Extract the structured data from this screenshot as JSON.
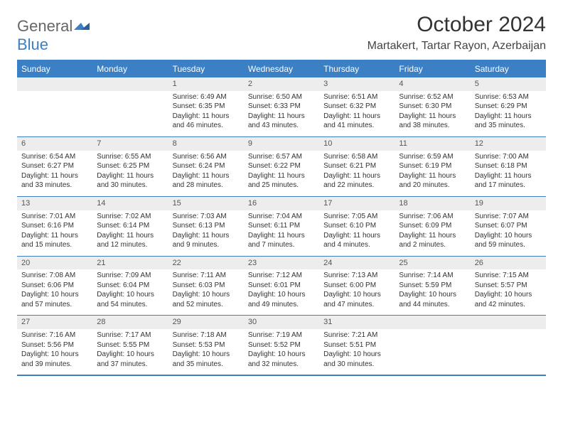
{
  "logo": {
    "line1": "General",
    "line2": "Blue"
  },
  "title": "October 2024",
  "location": "Martakert, Tartar Rayon, Azerbaijan",
  "colors": {
    "header_bg": "#3b7fc4",
    "header_text": "#ffffff",
    "daynum_bg": "#ededed",
    "border": "#3b7fc4",
    "text": "#333333"
  },
  "dayHeaders": [
    "Sunday",
    "Monday",
    "Tuesday",
    "Wednesday",
    "Thursday",
    "Friday",
    "Saturday"
  ],
  "weeks": [
    [
      null,
      null,
      {
        "n": "1",
        "sr": "6:49 AM",
        "ss": "6:35 PM",
        "dl": "11 hours and 46 minutes."
      },
      {
        "n": "2",
        "sr": "6:50 AM",
        "ss": "6:33 PM",
        "dl": "11 hours and 43 minutes."
      },
      {
        "n": "3",
        "sr": "6:51 AM",
        "ss": "6:32 PM",
        "dl": "11 hours and 41 minutes."
      },
      {
        "n": "4",
        "sr": "6:52 AM",
        "ss": "6:30 PM",
        "dl": "11 hours and 38 minutes."
      },
      {
        "n": "5",
        "sr": "6:53 AM",
        "ss": "6:29 PM",
        "dl": "11 hours and 35 minutes."
      }
    ],
    [
      {
        "n": "6",
        "sr": "6:54 AM",
        "ss": "6:27 PM",
        "dl": "11 hours and 33 minutes."
      },
      {
        "n": "7",
        "sr": "6:55 AM",
        "ss": "6:25 PM",
        "dl": "11 hours and 30 minutes."
      },
      {
        "n": "8",
        "sr": "6:56 AM",
        "ss": "6:24 PM",
        "dl": "11 hours and 28 minutes."
      },
      {
        "n": "9",
        "sr": "6:57 AM",
        "ss": "6:22 PM",
        "dl": "11 hours and 25 minutes."
      },
      {
        "n": "10",
        "sr": "6:58 AM",
        "ss": "6:21 PM",
        "dl": "11 hours and 22 minutes."
      },
      {
        "n": "11",
        "sr": "6:59 AM",
        "ss": "6:19 PM",
        "dl": "11 hours and 20 minutes."
      },
      {
        "n": "12",
        "sr": "7:00 AM",
        "ss": "6:18 PM",
        "dl": "11 hours and 17 minutes."
      }
    ],
    [
      {
        "n": "13",
        "sr": "7:01 AM",
        "ss": "6:16 PM",
        "dl": "11 hours and 15 minutes."
      },
      {
        "n": "14",
        "sr": "7:02 AM",
        "ss": "6:14 PM",
        "dl": "11 hours and 12 minutes."
      },
      {
        "n": "15",
        "sr": "7:03 AM",
        "ss": "6:13 PM",
        "dl": "11 hours and 9 minutes."
      },
      {
        "n": "16",
        "sr": "7:04 AM",
        "ss": "6:11 PM",
        "dl": "11 hours and 7 minutes."
      },
      {
        "n": "17",
        "sr": "7:05 AM",
        "ss": "6:10 PM",
        "dl": "11 hours and 4 minutes."
      },
      {
        "n": "18",
        "sr": "7:06 AM",
        "ss": "6:09 PM",
        "dl": "11 hours and 2 minutes."
      },
      {
        "n": "19",
        "sr": "7:07 AM",
        "ss": "6:07 PM",
        "dl": "10 hours and 59 minutes."
      }
    ],
    [
      {
        "n": "20",
        "sr": "7:08 AM",
        "ss": "6:06 PM",
        "dl": "10 hours and 57 minutes."
      },
      {
        "n": "21",
        "sr": "7:09 AM",
        "ss": "6:04 PM",
        "dl": "10 hours and 54 minutes."
      },
      {
        "n": "22",
        "sr": "7:11 AM",
        "ss": "6:03 PM",
        "dl": "10 hours and 52 minutes."
      },
      {
        "n": "23",
        "sr": "7:12 AM",
        "ss": "6:01 PM",
        "dl": "10 hours and 49 minutes."
      },
      {
        "n": "24",
        "sr": "7:13 AM",
        "ss": "6:00 PM",
        "dl": "10 hours and 47 minutes."
      },
      {
        "n": "25",
        "sr": "7:14 AM",
        "ss": "5:59 PM",
        "dl": "10 hours and 44 minutes."
      },
      {
        "n": "26",
        "sr": "7:15 AM",
        "ss": "5:57 PM",
        "dl": "10 hours and 42 minutes."
      }
    ],
    [
      {
        "n": "27",
        "sr": "7:16 AM",
        "ss": "5:56 PM",
        "dl": "10 hours and 39 minutes."
      },
      {
        "n": "28",
        "sr": "7:17 AM",
        "ss": "5:55 PM",
        "dl": "10 hours and 37 minutes."
      },
      {
        "n": "29",
        "sr": "7:18 AM",
        "ss": "5:53 PM",
        "dl": "10 hours and 35 minutes."
      },
      {
        "n": "30",
        "sr": "7:19 AM",
        "ss": "5:52 PM",
        "dl": "10 hours and 32 minutes."
      },
      {
        "n": "31",
        "sr": "7:21 AM",
        "ss": "5:51 PM",
        "dl": "10 hours and 30 minutes."
      },
      null,
      null
    ]
  ],
  "labels": {
    "sunrise": "Sunrise: ",
    "sunset": "Sunset: ",
    "daylight": "Daylight: "
  }
}
